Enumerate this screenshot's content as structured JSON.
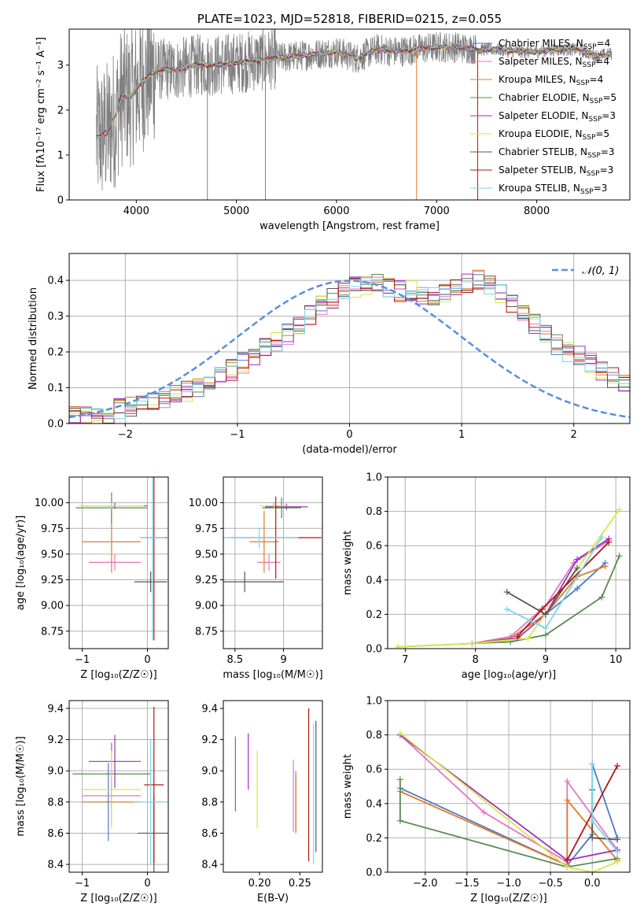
{
  "colors": {
    "chab_miles": "#4e79c4",
    "salp_miles": "#e377c2",
    "krou_miles": "#e07b2a",
    "chab_elodie": "#5a8a50",
    "salp_elodie": "#a02fc0",
    "krou_elodie": "#d4e84c",
    "chab_stelib": "#555555",
    "salp_stelib": "#b01818",
    "krou_stelib": "#7fd6e6",
    "data": "#808080",
    "normal": "#5b8fd9",
    "grid": "#b0b0b0"
  },
  "chart_data": [
    {
      "id": "spectrum",
      "type": "line",
      "title": "PLATE=1023, MJD=52818, FIBERID=0215, z=0.055",
      "xlabel": "wavelength [Angstrom, rest frame]",
      "ylabel": "Flux [fλ10⁻¹⁷ erg cm⁻² s⁻¹ A⁻¹]",
      "xlim": [
        3330,
        8930
      ],
      "ylim": [
        0,
        3.8
      ],
      "xticks": [
        4000,
        5000,
        6000,
        7000,
        8000
      ],
      "yticks": [
        0,
        1,
        2,
        3
      ],
      "grid": false,
      "legend_position": "right",
      "legend": [
        {
          "key": "chab_miles",
          "label": "Chabrier MILES, N",
          "sub": "SSP",
          "tail": "=4"
        },
        {
          "key": "salp_miles",
          "label": "Salpeter MILES, N",
          "sub": "SSP",
          "tail": "=4"
        },
        {
          "key": "krou_miles",
          "label": "Kroupa MILES, N",
          "sub": "SSP",
          "tail": "=4"
        },
        {
          "key": "chab_elodie",
          "label": "Chabrier ELODIE, N",
          "sub": "SSP",
          "tail": "=5"
        },
        {
          "key": "salp_elodie",
          "label": "Salpeter ELODIE, N",
          "sub": "SSP",
          "tail": "=3"
        },
        {
          "key": "krou_elodie",
          "label": "Kroupa ELODIE, N",
          "sub": "SSP",
          "tail": "=5"
        },
        {
          "key": "chab_stelib",
          "label": "Chabrier STELIB, N",
          "sub": "SSP",
          "tail": "=3"
        },
        {
          "key": "salp_stelib",
          "label": "Salpeter STELIB, N",
          "sub": "SSP",
          "tail": "=3"
        },
        {
          "key": "krou_stelib",
          "label": "Kroupa STELIB, N",
          "sub": "SSP",
          "tail": "=3"
        }
      ],
      "continuum": [
        [
          3600,
          1.4
        ],
        [
          3700,
          1.5
        ],
        [
          3800,
          1.9
        ],
        [
          3850,
          2.3
        ],
        [
          3950,
          2.3
        ],
        [
          4050,
          2.6
        ],
        [
          4200,
          2.9
        ],
        [
          4400,
          2.9
        ],
        [
          4600,
          3.0
        ],
        [
          4800,
          3.0
        ],
        [
          5000,
          3.05
        ],
        [
          5200,
          3.1
        ],
        [
          5400,
          3.15
        ],
        [
          5600,
          3.2
        ],
        [
          5800,
          3.25
        ],
        [
          6000,
          3.3
        ],
        [
          6200,
          3.15
        ],
        [
          6400,
          3.35
        ],
        [
          6600,
          3.3
        ],
        [
          6800,
          3.35
        ],
        [
          7000,
          3.4
        ],
        [
          7200,
          3.4
        ],
        [
          7400,
          3.35
        ],
        [
          7600,
          3.35
        ],
        [
          7800,
          3.3
        ],
        [
          8000,
          3.3
        ],
        [
          8200,
          3.35
        ],
        [
          8400,
          3.35
        ],
        [
          8600,
          3.2
        ],
        [
          8750,
          3.25
        ]
      ]
    },
    {
      "id": "residuals",
      "type": "histogram",
      "xlabel": "(data-model)/error",
      "ylabel": "Normed distribution",
      "xlim": [
        -2.5,
        2.5
      ],
      "ylim": [
        0,
        0.475
      ],
      "xticks": [
        -2,
        -1,
        0,
        1,
        2
      ],
      "yticks": [
        0.0,
        0.1,
        0.2,
        0.3,
        0.4
      ],
      "grid": true,
      "bin_width": 0.1,
      "bins_start": -2.5,
      "reference_label": "𝒩(0, 1)",
      "legend_position": "top-right",
      "base_values": [
        0.02,
        0.02,
        0.03,
        0.03,
        0.04,
        0.05,
        0.05,
        0.06,
        0.07,
        0.08,
        0.09,
        0.1,
        0.12,
        0.13,
        0.15,
        0.17,
        0.19,
        0.21,
        0.23,
        0.25,
        0.28,
        0.3,
        0.33,
        0.35,
        0.37,
        0.38,
        0.38,
        0.39,
        0.38,
        0.37,
        0.37,
        0.36,
        0.36,
        0.37,
        0.38,
        0.39,
        0.4,
        0.39,
        0.36,
        0.33,
        0.3,
        0.28,
        0.25,
        0.22,
        0.2,
        0.19,
        0.17,
        0.15,
        0.13,
        0.12,
        0.11,
        0.1,
        0.09,
        0.08,
        0.07,
        0.06,
        0.05,
        0.04,
        0.03,
        0.03,
        0.03,
        0.02,
        0.03,
        0.02,
        0.02,
        0.02,
        0.02,
        0.02,
        0.02,
        0.02
      ]
    },
    {
      "id": "age_vs_Z",
      "type": "errorbar",
      "xlabel": "Z [log₁₀(Z/Z☉)]",
      "ylabel": "age  [log₁₀(age/yr)]",
      "xlim": [
        -1.2,
        0.32
      ],
      "ylim": [
        8.58,
        10.25
      ],
      "xticks": [
        -1,
        0
      ],
      "yticks": [
        8.75,
        9.0,
        9.25,
        9.5,
        9.75,
        10.0
      ],
      "grid": true,
      "points": [
        {
          "key": "chab_miles",
          "x": -0.55,
          "xerr": 0.05,
          "y": 9.97,
          "yerr": 0.03
        },
        {
          "key": "salp_miles",
          "x": -0.5,
          "xerr": 0.4,
          "y": 9.42,
          "yerr": 0.08
        },
        {
          "key": "krou_miles",
          "x": -0.55,
          "xerr": 0.45,
          "y": 9.62,
          "yerr": 0.3
        },
        {
          "key": "chab_elodie",
          "x": -0.55,
          "xerr": 0.55,
          "y": 9.95,
          "yerr": 0.15
        },
        {
          "key": "salp_elodie",
          "x": -0.5,
          "xerr": 0.5,
          "y": 9.97,
          "yerr": 0.03
        },
        {
          "key": "krou_elodie",
          "x": -0.55,
          "xerr": 0.5,
          "y": 9.97,
          "yerr": 0.03
        },
        {
          "key": "chab_stelib",
          "x": 0.05,
          "xerr": 0.25,
          "y": 9.23,
          "yerr": 0.1
        },
        {
          "key": "salp_stelib",
          "x": 0.1,
          "xerr": 0.2,
          "y": 9.66,
          "yerr": 1.0
        },
        {
          "key": "krou_stelib",
          "x": 0.08,
          "xerr": 0.2,
          "y": 9.66,
          "yerr": 1.0
        }
      ]
    },
    {
      "id": "age_vs_mass",
      "type": "errorbar",
      "xlabel": "mass [log₁₀(M/M☉)]",
      "ylabel": "",
      "xlim": [
        8.38,
        9.4
      ],
      "ylim": [
        8.58,
        10.25
      ],
      "xticks": [
        8.5,
        9.0
      ],
      "yticks": [
        8.75,
        9.0,
        9.25,
        9.5,
        9.75,
        10.0
      ],
      "grid": true,
      "points": [
        {
          "key": "chab_miles",
          "x": 8.9,
          "xerr": 0.05,
          "y": 9.97,
          "yerr": 0.03
        },
        {
          "key": "salp_miles",
          "x": 8.85,
          "xerr": 0.12,
          "y": 9.42,
          "yerr": 0.08
        },
        {
          "key": "krou_miles",
          "x": 8.8,
          "xerr": 0.15,
          "y": 9.62,
          "yerr": 0.3
        },
        {
          "key": "chab_elodie",
          "x": 8.98,
          "xerr": 0.2,
          "y": 9.95,
          "yerr": 0.1
        },
        {
          "key": "salp_elodie",
          "x": 9.03,
          "xerr": 0.22,
          "y": 9.96,
          "yerr": 0.03
        },
        {
          "key": "krou_elodie",
          "x": 8.9,
          "xerr": 0.15,
          "y": 9.97,
          "yerr": 0.03
        },
        {
          "key": "chab_stelib",
          "x": 8.6,
          "xerr": 0.4,
          "y": 9.23,
          "yerr": 0.1
        },
        {
          "key": "salp_stelib",
          "x": 8.92,
          "xerr": 0.47,
          "y": 9.66,
          "yerr": 0.4
        },
        {
          "key": "krou_stelib",
          "x": 8.75,
          "xerr": 0.4,
          "y": 9.66,
          "yerr": 0.1
        }
      ]
    },
    {
      "id": "mass_weight_vs_age",
      "type": "line",
      "xlabel": "age  [log₁₀(age/yr)]",
      "ylabel": "mass weight",
      "xlim": [
        6.75,
        10.2
      ],
      "ylim": [
        0,
        1.0
      ],
      "xticks": [
        7,
        8,
        9,
        10
      ],
      "yticks": [
        0.0,
        0.2,
        0.4,
        0.6,
        0.8,
        1.0
      ],
      "grid": true,
      "series": [
        {
          "key": "chab_miles",
          "x": [
            7.95,
            8.5,
            9.0,
            9.45,
            9.85
          ],
          "y": [
            0.03,
            0.06,
            0.2,
            0.35,
            0.5
          ]
        },
        {
          "key": "salp_miles",
          "x": [
            7.95,
            8.5,
            9.0,
            9.4,
            9.9
          ],
          "y": [
            0.03,
            0.07,
            0.25,
            0.5,
            0.63
          ]
        },
        {
          "key": "krou_miles",
          "x": [
            7.95,
            8.5,
            9.0,
            9.45,
            9.85
          ],
          "y": [
            0.03,
            0.06,
            0.2,
            0.42,
            0.48
          ]
        },
        {
          "key": "chab_elodie",
          "x": [
            6.9,
            7.95,
            8.5,
            9.0,
            9.8,
            10.05
          ],
          "y": [
            0.01,
            0.03,
            0.04,
            0.08,
            0.3,
            0.54
          ]
        },
        {
          "key": "salp_elodie",
          "x": [
            7.95,
            8.6,
            9.0,
            9.45,
            9.9
          ],
          "y": [
            0.03,
            0.06,
            0.2,
            0.52,
            0.64
          ]
        },
        {
          "key": "krou_elodie",
          "x": [
            6.9,
            7.95,
            8.75,
            10.05
          ],
          "y": [
            0.01,
            0.03,
            0.06,
            0.81
          ]
        },
        {
          "key": "chab_stelib",
          "x": [
            8.45,
            9.0,
            9.45
          ],
          "y": [
            0.33,
            0.2,
            0.47
          ]
        },
        {
          "key": "salp_stelib",
          "x": [
            8.6,
            8.95,
            9.9
          ],
          "y": [
            0.07,
            0.23,
            0.62
          ]
        },
        {
          "key": "krou_stelib",
          "x": [
            8.45,
            9.0,
            9.8
          ],
          "y": [
            0.23,
            0.12,
            0.65
          ]
        }
      ]
    },
    {
      "id": "mass_vs_Z",
      "type": "errorbar",
      "xlabel": "Z [log₁₀(Z/Z☉)]",
      "ylabel": "mass [log₁₀(M/M☉)]",
      "xlim": [
        -1.2,
        0.32
      ],
      "ylim": [
        8.35,
        9.45
      ],
      "xticks": [
        -1,
        0
      ],
      "yticks": [
        8.4,
        8.6,
        8.8,
        9.0,
        9.2,
        9.4
      ],
      "grid": true,
      "points": [
        {
          "key": "chab_miles",
          "x": -0.6,
          "xerr": 0.05,
          "y": 8.8,
          "yerr": 0.25
        },
        {
          "key": "salp_miles",
          "x": -0.55,
          "xerr": 0.45,
          "y": 8.84,
          "yerr": 0.12
        },
        {
          "key": "krou_miles",
          "x": -0.55,
          "xerr": 0.45,
          "y": 8.8,
          "yerr": 0.15
        },
        {
          "key": "chab_elodie",
          "x": -0.55,
          "xerr": 0.6,
          "y": 8.98,
          "yerr": 0.2
        },
        {
          "key": "salp_elodie",
          "x": -0.5,
          "xerr": 0.4,
          "y": 9.06,
          "yerr": 0.17
        },
        {
          "key": "krou_elodie",
          "x": -0.55,
          "xerr": 0.45,
          "y": 8.88,
          "yerr": 0.25
        },
        {
          "key": "chab_stelib",
          "x": 0.1,
          "xerr": 0.25,
          "y": 8.6,
          "yerr": 0.25
        },
        {
          "key": "salp_stelib",
          "x": 0.1,
          "xerr": 0.15,
          "y": 8.91,
          "yerr": 0.5
        },
        {
          "key": "krou_stelib",
          "x": 0.05,
          "xerr": 0.25,
          "y": 8.8,
          "yerr": 0.4
        }
      ]
    },
    {
      "id": "mass_vs_ebv",
      "type": "errorbar",
      "xlabel": "E(B-V)",
      "ylabel": "",
      "xlim": [
        0.155,
        0.278
      ],
      "ylim": [
        8.35,
        9.45
      ],
      "xticks": [
        0.2,
        0.25
      ],
      "xtick_labels": [
        "0.20",
        "0.25"
      ],
      "yticks": [
        8.4,
        8.6,
        8.8,
        9.0,
        9.2,
        9.4
      ],
      "grid": false,
      "points": [
        {
          "key": "chab_miles",
          "x": 0.245,
          "xerr": 0,
          "y": 8.79,
          "yerr": 0.18
        },
        {
          "key": "salp_miles",
          "x": 0.242,
          "xerr": 0,
          "y": 8.84,
          "yerr": 0.23
        },
        {
          "key": "krou_miles",
          "x": 0.245,
          "xerr": 0,
          "y": 8.8,
          "yerr": 0.2
        },
        {
          "key": "chab_elodie",
          "x": 0.17,
          "xerr": 0,
          "y": 8.98,
          "yerr": 0.24
        },
        {
          "key": "salp_elodie",
          "x": 0.186,
          "xerr": 0,
          "y": 9.06,
          "yerr": 0.18
        },
        {
          "key": "krou_elodie",
          "x": 0.197,
          "xerr": 0,
          "y": 8.88,
          "yerr": 0.25
        },
        {
          "key": "chab_stelib",
          "x": 0.27,
          "xerr": 0,
          "y": 8.9,
          "yerr": 0.42
        },
        {
          "key": "salp_stelib",
          "x": 0.261,
          "xerr": 0,
          "y": 8.91,
          "yerr": 0.49
        },
        {
          "key": "krou_stelib",
          "x": 0.267,
          "xerr": 0,
          "y": 8.85,
          "yerr": 0.45
        }
      ]
    },
    {
      "id": "mass_weight_vs_Z",
      "type": "line",
      "xlabel": "Z [log₁₀(Z/Z☉)]",
      "ylabel": "mass weight",
      "xlim": [
        -2.45,
        0.45
      ],
      "ylim": [
        0,
        1.0
      ],
      "xticks": [
        -2.0,
        -1.5,
        -1.0,
        -0.5,
        0.0
      ],
      "xtick_labels": [
        "−2.0",
        "−1.5",
        "−1.0",
        "−0.5",
        "0.0"
      ],
      "yticks": [
        0.0,
        0.2,
        0.4,
        0.6,
        0.8,
        1.0
      ],
      "grid": true,
      "series": [
        {
          "key": "chab_miles",
          "x": [
            -2.3,
            -0.3,
            0.0,
            0.0,
            0.3
          ],
          "y": [
            0.49,
            0.04,
            0.22,
            0.63,
            0.2
          ]
        },
        {
          "key": "salp_miles",
          "x": [
            -2.3,
            -1.3,
            -0.3,
            -0.3,
            0.3
          ],
          "y": [
            0.8,
            0.35,
            0.06,
            0.53,
            0.13
          ]
        },
        {
          "key": "krou_miles",
          "x": [
            -2.3,
            -0.3,
            -0.3,
            0.3
          ],
          "y": [
            0.47,
            0.04,
            0.42,
            0.07
          ]
        },
        {
          "key": "chab_elodie",
          "x": [
            -2.3,
            -2.3,
            -0.3,
            0.3
          ],
          "y": [
            0.54,
            0.3,
            0.03,
            0.08
          ]
        },
        {
          "key": "salp_elodie",
          "x": [
            -2.3,
            -0.3,
            0.3
          ],
          "y": [
            0.8,
            0.07,
            0.13
          ]
        },
        {
          "key": "krou_elodie",
          "x": [
            -2.3,
            -0.3,
            0.0,
            0.3
          ],
          "y": [
            0.81,
            0.03,
            0.0,
            0.06
          ]
        },
        {
          "key": "chab_stelib",
          "x": [
            0.0,
            0.0,
            0.3
          ],
          "y": [
            0.48,
            0.2,
            0.19
          ]
        },
        {
          "key": "salp_stelib",
          "x": [
            -0.3,
            0.3
          ],
          "y": [
            0.07,
            0.62
          ]
        },
        {
          "key": "krou_stelib",
          "x": [
            0.0,
            0.0,
            0.3
          ],
          "y": [
            0.63,
            0.3,
            0.12
          ]
        }
      ]
    }
  ]
}
